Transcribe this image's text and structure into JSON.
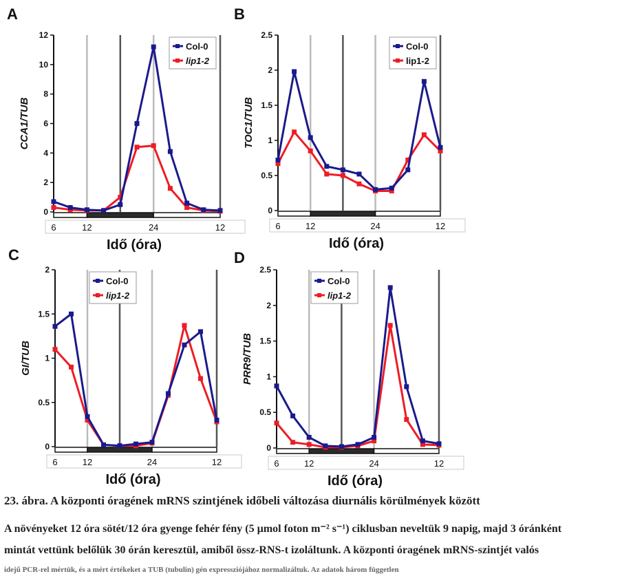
{
  "caption": {
    "title": "23. ábra. A központi óragének mRNS szintjének időbeli változása diurnális körülmények között",
    "line1": "A növényeket 12 óra sötét/12 óra gyenge fehér fény (5 µmol foton m⁻² s⁻¹) ciklusban neveltük 9 napig, majd 3 óránként",
    "line2": "mintát vettünk belőlük 30 órán keresztül, amiből össz-RNS-t izoláltunk. A központi óragének mRNS-szintjét valós",
    "line3": "idejű PCR-rel mértük, és a mért értékeket a TUB (tubulin) gén expressziójához normalizáltuk. Az adatok három független"
  },
  "chart_data": [
    {
      "panel": "A",
      "type": "line",
      "ylabel": "CCA1/TUB",
      "xlabel": "Idő (óra)",
      "x": [
        6,
        9,
        12,
        15,
        18,
        21,
        24,
        27,
        30,
        33,
        36
      ],
      "xticks": [
        "6",
        "12",
        "24",
        "12"
      ],
      "xtick_pos": [
        6,
        12,
        24,
        36
      ],
      "ylim": [
        0,
        12
      ],
      "yticks": [
        "0",
        "2",
        "4",
        "6",
        "8",
        "10",
        "12"
      ],
      "ytick_vals": [
        0,
        2,
        4,
        6,
        8,
        10,
        12
      ],
      "legend": "top-right",
      "series": [
        {
          "name": "Col-0",
          "color": "#1a1a8c",
          "values": [
            0.7,
            0.3,
            0.15,
            0.1,
            0.5,
            6.0,
            11.2,
            4.1,
            0.6,
            0.15,
            0.1
          ]
        },
        {
          "name": "lip1-2",
          "color": "#ee1c24",
          "italic": true,
          "values": [
            0.3,
            0.15,
            0.1,
            0.1,
            1.0,
            4.4,
            4.5,
            1.6,
            0.3,
            0.1,
            0.05
          ]
        }
      ],
      "bar": [
        {
          "from": 6,
          "to": 12,
          "fill": "#ffffff"
        },
        {
          "from": 12,
          "to": 24,
          "fill": "#2b2b2b"
        },
        {
          "from": 24,
          "to": 36,
          "fill": "#ffffff"
        }
      ],
      "vlines": [
        12,
        18,
        24,
        36
      ]
    },
    {
      "panel": "B",
      "type": "line",
      "ylabel": "TOC1/TUB",
      "xlabel": "Idő (óra)",
      "x": [
        6,
        9,
        12,
        15,
        18,
        21,
        24,
        27,
        30,
        33,
        36
      ],
      "xticks": [
        "6",
        "12",
        "24",
        "12"
      ],
      "xtick_pos": [
        6,
        12,
        24,
        36
      ],
      "ylim": [
        0,
        2.5
      ],
      "yticks": [
        "0",
        "0.5",
        "1",
        "1.5",
        "2",
        "2.5"
      ],
      "ytick_vals": [
        0,
        0.5,
        1,
        1.5,
        2,
        2.5
      ],
      "legend": "top-right",
      "series": [
        {
          "name": "Col-0",
          "color": "#1a1a8c",
          "values": [
            0.72,
            1.98,
            1.04,
            0.63,
            0.58,
            0.52,
            0.3,
            0.32,
            0.58,
            1.84,
            0.9
          ]
        },
        {
          "name": "lip1-2",
          "color": "#ee1c24",
          "values": [
            0.67,
            1.12,
            0.85,
            0.52,
            0.5,
            0.38,
            0.28,
            0.28,
            0.72,
            1.08,
            0.85
          ]
        }
      ],
      "bar": [
        {
          "from": 6,
          "to": 12,
          "fill": "#ffffff"
        },
        {
          "from": 12,
          "to": 24,
          "fill": "#2b2b2b"
        },
        {
          "from": 24,
          "to": 36,
          "fill": "#ffffff"
        }
      ],
      "vlines": [
        12,
        18,
        24,
        36
      ]
    },
    {
      "panel": "C",
      "type": "line",
      "ylabel": "GI/TUB",
      "xlabel": "Idő (óra)",
      "x": [
        6,
        9,
        12,
        15,
        18,
        21,
        24,
        27,
        30,
        33,
        36
      ],
      "xticks": [
        "6",
        "12",
        "24",
        "12"
      ],
      "xtick_pos": [
        6,
        12,
        24,
        36
      ],
      "ylim": [
        0,
        2
      ],
      "yticks": [
        "0",
        "0.5",
        "1",
        "1.5",
        "2"
      ],
      "ytick_vals": [
        0,
        0.5,
        1,
        1.5,
        2
      ],
      "legend": "top-left",
      "series": [
        {
          "name": "Col-0",
          "color": "#1a1a8c",
          "values": [
            1.36,
            1.5,
            0.34,
            0.02,
            0.01,
            0.03,
            0.05,
            0.6,
            1.15,
            1.3,
            0.3
          ]
        },
        {
          "name": "lip1-2",
          "color": "#ee1c24",
          "italic": true,
          "values": [
            1.1,
            0.9,
            0.3,
            0.02,
            0.01,
            0.01,
            0.04,
            0.58,
            1.37,
            0.77,
            0.28
          ]
        }
      ],
      "bar": [
        {
          "from": 6,
          "to": 12,
          "fill": "#ffffff"
        },
        {
          "from": 12,
          "to": 24,
          "fill": "#2b2b2b"
        },
        {
          "from": 24,
          "to": 36,
          "fill": "#ffffff"
        }
      ],
      "vlines": [
        12,
        18,
        24,
        36
      ]
    },
    {
      "panel": "D",
      "type": "line",
      "ylabel": "PRR9/TUB",
      "xlabel": "Idő (óra)",
      "x": [
        6,
        9,
        12,
        15,
        18,
        21,
        24,
        27,
        30,
        33,
        36
      ],
      "xticks": [
        "6",
        "12",
        "24",
        "12"
      ],
      "xtick_pos": [
        6,
        12,
        24,
        36
      ],
      "ylim": [
        0,
        2.5
      ],
      "yticks": [
        "0",
        "0.5",
        "1",
        "1.5",
        "2",
        "2.5"
      ],
      "ytick_vals": [
        0,
        0.5,
        1,
        1.5,
        2,
        2.5
      ],
      "legend": "top-left",
      "series": [
        {
          "name": "Col-0",
          "color": "#1a1a8c",
          "values": [
            0.87,
            0.45,
            0.15,
            0.03,
            0.02,
            0.05,
            0.15,
            2.25,
            0.86,
            0.1,
            0.06
          ]
        },
        {
          "name": "lip1-2",
          "color": "#ee1c24",
          "italic": true,
          "values": [
            0.35,
            0.08,
            0.05,
            0.01,
            0.01,
            0.03,
            0.1,
            1.72,
            0.4,
            0.05,
            0.04
          ]
        }
      ],
      "bar": [
        {
          "from": 6,
          "to": 12,
          "fill": "#ffffff"
        },
        {
          "from": 12,
          "to": 24,
          "fill": "#2b2b2b"
        },
        {
          "from": 24,
          "to": 36,
          "fill": "#ffffff"
        }
      ],
      "vlines": [
        12,
        18,
        24,
        36
      ]
    }
  ]
}
